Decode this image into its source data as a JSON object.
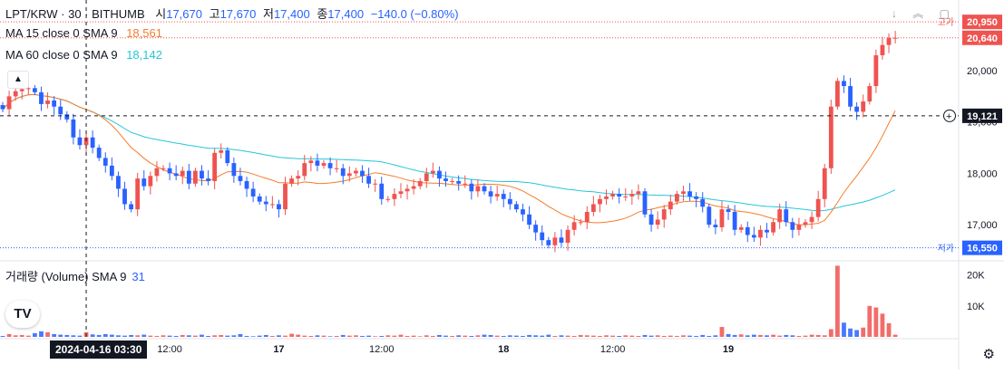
{
  "header": {
    "symbol": "LPT/KRW · 30 · BITHUMB",
    "open_label": "시",
    "open": "17,670",
    "high_label": "고",
    "high": "17,670",
    "low_label": "저",
    "low": "17,400",
    "close_label": "종",
    "close": "17,400",
    "change": "−140.0 (−0.80%)"
  },
  "indicators": {
    "ma15": {
      "label": "MA 15 close 0 SMA 9",
      "value": "18,561"
    },
    "ma60": {
      "label": "MA 60 close 0 SMA 9",
      "value": "18,142"
    }
  },
  "volume_legend": {
    "label": "거래량 (Volume) SMA 9",
    "value": "31"
  },
  "price_labels": {
    "high_tag": "고가",
    "low_tag": "저가",
    "high_value": "20,950",
    "last_value": "20,640",
    "crosshair_value": "19,121",
    "low_value": "16,550"
  },
  "crosshair_time": "2024-04-16  03:30",
  "colors": {
    "up": "#ef5350",
    "down": "#2962ff",
    "ma15": "#f57c2b",
    "ma60": "#26c6da",
    "high_line": "#ef5350",
    "low_line": "#2962ff"
  },
  "chart_data": {
    "type": "candlestick",
    "title": "LPT/KRW · 30 · BITHUMB",
    "interval": "30m",
    "y_ticks": [
      17000,
      18000,
      19000,
      20000
    ],
    "y_tick_labels": [
      "17,000",
      "18,000",
      "19,000",
      "20,000"
    ],
    "ylim": [
      16350,
      21200
    ],
    "volume_ticks": [
      10000,
      20000
    ],
    "volume_tick_labels": [
      "10K",
      "20K"
    ],
    "volume_max": 24000,
    "x_tick_labels": [
      {
        "i": 26,
        "label": "12:00"
      },
      {
        "i": 43,
        "label": "17"
      },
      {
        "i": 59,
        "label": "12:00"
      },
      {
        "i": 78,
        "label": "18"
      },
      {
        "i": 95,
        "label": "12:00"
      },
      {
        "i": 113,
        "label": "19"
      }
    ],
    "crosshair_index": 13,
    "high_line": 20950,
    "low_line": 16550,
    "crosshair_price": 19121,
    "closes": [
      19250,
      19500,
      19600,
      19640,
      19660,
      19580,
      19350,
      19420,
      19300,
      19150,
      19050,
      18700,
      18550,
      18700,
      18500,
      18300,
      18150,
      17950,
      17700,
      17400,
      17300,
      17900,
      17750,
      17950,
      18100,
      18100,
      18000,
      17950,
      18050,
      17800,
      18050,
      17900,
      17850,
      18400,
      18450,
      18200,
      17950,
      17850,
      17700,
      17550,
      17450,
      17400,
      17400,
      17300,
      17800,
      17900,
      17950,
      18200,
      18250,
      18150,
      18200,
      18100,
      18100,
      17950,
      18000,
      18050,
      17950,
      17800,
      17800,
      17500,
      17500,
      17600,
      17650,
      17700,
      17750,
      17850,
      18000,
      18050,
      17900,
      17850,
      17850,
      17800,
      17800,
      17650,
      17750,
      17650,
      17550,
      17600,
      17500,
      17400,
      17300,
      17200,
      17000,
      16850,
      16700,
      16600,
      16750,
      16650,
      16900,
      17050,
      17050,
      17250,
      17400,
      17500,
      17550,
      17600,
      17550,
      17550,
      17600,
      17650,
      17200,
      17000,
      17100,
      17300,
      17450,
      17600,
      17650,
      17550,
      17500,
      17350,
      17000,
      16950,
      17300,
      17250,
      16900,
      16950,
      16800,
      16750,
      16900,
      16850,
      17050,
      17300,
      17050,
      16900,
      17000,
      17050,
      17150,
      17500,
      18100,
      19300,
      19800,
      19700,
      19300,
      19200,
      19400,
      19700,
      20300,
      20500,
      20640,
      20640
    ],
    "volumes": [
      300,
      900,
      500,
      600,
      400,
      1200,
      1800,
      1500,
      900,
      700,
      600,
      500,
      400,
      1500,
      800,
      600,
      900,
      700,
      500,
      400,
      600,
      500,
      700,
      400,
      300,
      500,
      400,
      300,
      600,
      500,
      400,
      700,
      300,
      500,
      600,
      400,
      500,
      900,
      300,
      200,
      400,
      600,
      300,
      500,
      400,
      1000,
      700,
      400,
      300,
      500,
      400,
      200,
      300,
      600,
      400,
      500,
      300,
      400,
      200,
      300,
      500,
      400,
      700,
      300,
      400,
      200,
      500,
      300,
      600,
      400,
      300,
      500,
      400,
      300,
      500,
      700,
      600,
      400,
      300,
      500,
      400,
      300,
      600,
      500,
      400,
      700,
      300,
      500,
      400,
      300,
      600,
      500,
      400,
      300,
      500,
      400,
      300,
      500,
      400,
      300,
      600,
      400,
      500,
      300,
      400,
      300,
      500,
      400,
      300,
      600,
      300,
      500,
      3200,
      900,
      600,
      800,
      500,
      700,
      600,
      500,
      700,
      400,
      600,
      500,
      300,
      400,
      700,
      600,
      500,
      2500,
      23000,
      4600,
      2700,
      2200,
      3000,
      10000,
      9500,
      7500,
      4400,
      700
    ]
  }
}
